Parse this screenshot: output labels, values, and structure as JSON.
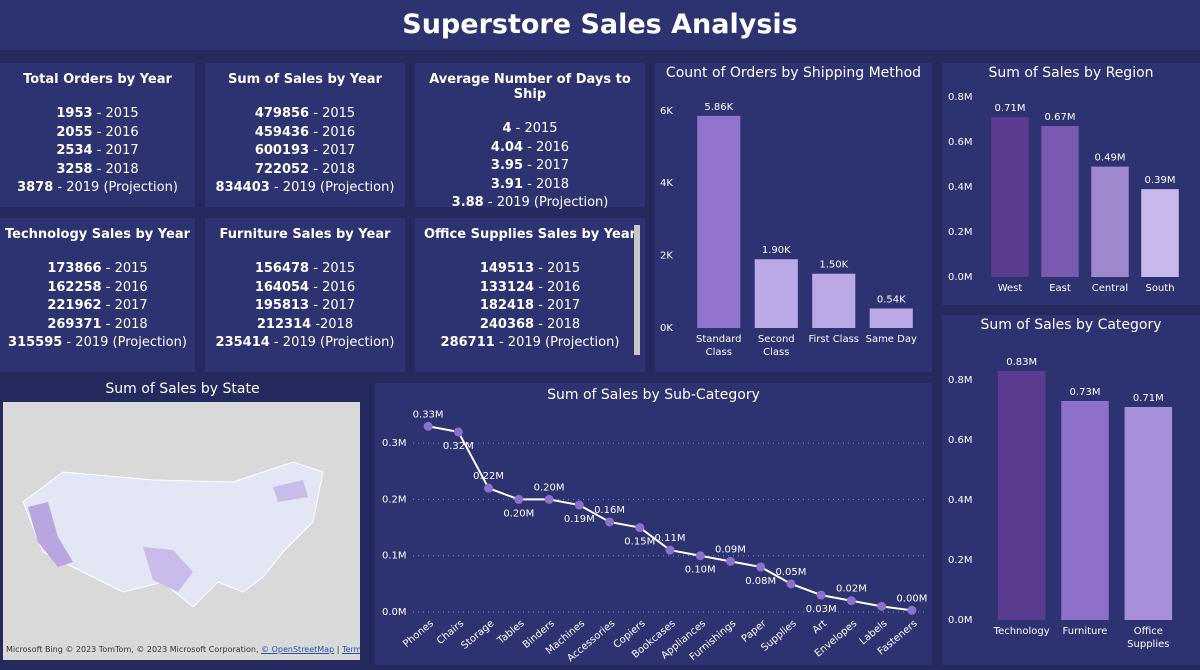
{
  "title": "Superstore Sales Analysis",
  "cards": [
    {
      "title": "Total Orders by Year",
      "lines": [
        {
          "value": 1953,
          "label": "- 2015"
        },
        {
          "value": 2055,
          "label": "- 2016"
        },
        {
          "value": 2534,
          "label": "- 2017"
        },
        {
          "value": 3258,
          "label": "- 2018"
        },
        {
          "value": 3878,
          "label": "- 2019 (Projection)"
        }
      ]
    },
    {
      "title": "Sum of Sales by Year",
      "lines": [
        {
          "value": 479856,
          "label": "- 2015"
        },
        {
          "value": 459436,
          "label": "- 2016"
        },
        {
          "value": 600193,
          "label": "- 2017"
        },
        {
          "value": 722052,
          "label": "- 2018"
        },
        {
          "value": 834403,
          "label": "- 2019 (Projection)"
        }
      ]
    },
    {
      "title": "Average Number of Days to Ship",
      "lines": [
        {
          "value": 4,
          "label": "- 2015"
        },
        {
          "value": 4.04,
          "label": "- 2016"
        },
        {
          "value": 3.95,
          "label": "- 2017"
        },
        {
          "value": 3.91,
          "label": "- 2018"
        },
        {
          "value": 3.88,
          "label": "- 2019 (Projection)"
        }
      ]
    },
    {
      "title": "Technology Sales by Year",
      "lines": [
        {
          "value": 173866,
          "label": "- 2015"
        },
        {
          "value": 162258,
          "label": "- 2016"
        },
        {
          "value": 221962,
          "label": "- 2017"
        },
        {
          "value": 269371,
          "label": "- 2018"
        },
        {
          "value": 315595,
          "label": "- 2019 (Projection)"
        }
      ]
    },
    {
      "title": "Furniture Sales by Year",
      "lines": [
        {
          "value": 156478,
          "label": "- 2015"
        },
        {
          "value": 164054,
          "label": "- 2016"
        },
        {
          "value": 195813,
          "label": "- 2017"
        },
        {
          "value": 212314,
          "label": "-2018"
        },
        {
          "value": 235414,
          "label": "- 2019 (Projection)"
        }
      ]
    },
    {
      "title": "Office Supplies Sales by Year",
      "lines": [
        {
          "value": 149513,
          "label": "- 2015"
        },
        {
          "value": 133124,
          "label": "- 2016"
        },
        {
          "value": 182418,
          "label": "- 2017"
        },
        {
          "value": 240368,
          "label": "- 2018"
        },
        {
          "value": 286711,
          "label": "- 2019 (Projection)"
        }
      ]
    }
  ],
  "map": {
    "title": "Sum of Sales by State",
    "attribution": [
      "Microsoft Bing",
      "© 2023 TomTom, © 2023 Microsoft Corporation,",
      "© OpenStreetMap",
      "Terms"
    ]
  },
  "chart_data": [
    {
      "type": "bar",
      "title": "Count of Orders by Shipping Method",
      "categories": [
        "Standard Class",
        "Second Class",
        "First Class",
        "Same Day"
      ],
      "values": [
        5860,
        1900,
        1500,
        540
      ],
      "value_labels": [
        "5.86K",
        "1.90K",
        "1.50K",
        "0.54K"
      ],
      "colors": [
        "#9274cf",
        "#bba8e6",
        "#bba8e6",
        "#bba8e6"
      ],
      "ylim": [
        0,
        6300
      ],
      "yticks": [
        {
          "value": 0,
          "label": "0K"
        },
        {
          "value": 2000,
          "label": "2K"
        },
        {
          "value": 4000,
          "label": "4K"
        },
        {
          "value": 6000,
          "label": "6K"
        }
      ],
      "grid": false
    },
    {
      "type": "bar",
      "title": "Sum of Sales by Region",
      "categories": [
        "West",
        "East",
        "Central",
        "South"
      ],
      "values": [
        710000,
        670000,
        490000,
        390000
      ],
      "value_labels": [
        "0.71M",
        "0.67M",
        "0.49M",
        "0.39M"
      ],
      "colors": [
        "#5b3c91",
        "#7a5bb1",
        "#9f88cc",
        "#c9b9ea"
      ],
      "ylim": [
        0,
        830000
      ],
      "yticks": [
        {
          "value": 0,
          "label": "0.0M"
        },
        {
          "value": 200000,
          "label": "0.2M"
        },
        {
          "value": 400000,
          "label": "0.4M"
        },
        {
          "value": 600000,
          "label": "0.6M"
        },
        {
          "value": 800000,
          "label": "0.8M"
        }
      ],
      "grid": false
    },
    {
      "type": "bar",
      "title": "Sum of Sales by Category",
      "categories": [
        "Technology",
        "Furniture",
        "Office Supplies"
      ],
      "values": [
        830000,
        730000,
        710000
      ],
      "value_labels": [
        "0.83M",
        "0.73M",
        "0.71M"
      ],
      "colors": [
        "#5b3c91",
        "#8e6fcb",
        "#a88fd9"
      ],
      "ylim": [
        0,
        850000
      ],
      "yticks": [
        {
          "value": 0,
          "label": "0.0M"
        },
        {
          "value": 200000,
          "label": "0.2M"
        },
        {
          "value": 400000,
          "label": "0.4M"
        },
        {
          "value": 600000,
          "label": "0.6M"
        },
        {
          "value": 800000,
          "label": "0.8M"
        }
      ],
      "grid": false
    },
    {
      "type": "line",
      "title": "Sum of Sales by Sub-Category",
      "categories": [
        "Phones",
        "Chairs",
        "Storage",
        "Tables",
        "Binders",
        "Machines",
        "Accessories",
        "Copiers",
        "Bookcases",
        "Appliances",
        "Furnishings",
        "Paper",
        "Supplies",
        "Art",
        "Envelopes",
        "Labels",
        "Fasteners"
      ],
      "values": [
        330000,
        320000,
        220000,
        200000,
        200000,
        190000,
        160000,
        150000,
        110000,
        100000,
        90000,
        80000,
        50000,
        30000,
        20000,
        10000,
        3000
      ],
      "value_labels": [
        "0.33M",
        "0.32M",
        "0.22M",
        "0.20M",
        "0.20M",
        "0.19M",
        "0.16M",
        "0.15M",
        "0.11M",
        "0.10M",
        "0.09M",
        "0.08M",
        "0.05M",
        "0.03M",
        "0.02M",
        null,
        "0.00M"
      ],
      "color": "#ffffff",
      "marker_color": "#8e6fcb",
      "ylim": [
        0,
        350000
      ],
      "yticks": [
        {
          "value": 0,
          "label": "0.0M"
        },
        {
          "value": 100000,
          "label": "0.1M"
        },
        {
          "value": 200000,
          "label": "0.2M"
        },
        {
          "value": 300000,
          "label": "0.3M"
        }
      ],
      "grid": true
    }
  ]
}
